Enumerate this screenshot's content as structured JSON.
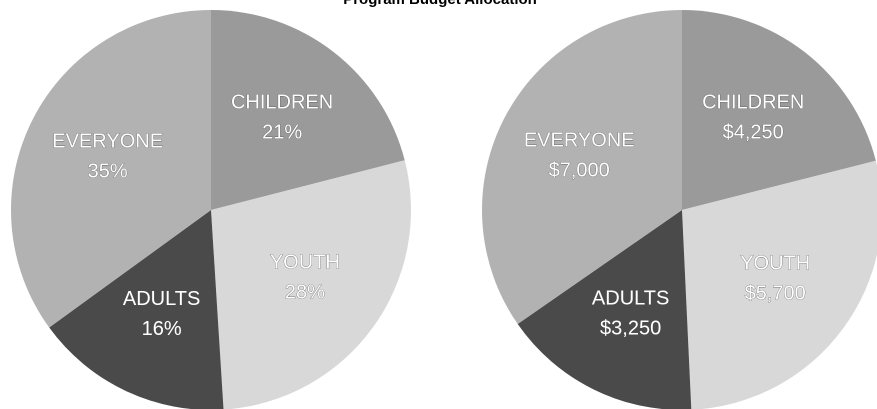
{
  "title": "Program Budget Allocation",
  "chart_data": [
    {
      "type": "pie",
      "categories": [
        "CHILDREN",
        "YOUTH",
        "ADULTS",
        "EVERYONE"
      ],
      "values": [
        21,
        28,
        16,
        35
      ],
      "value_labels": [
        "21%",
        "28%",
        "16%",
        "35%"
      ],
      "colors": [
        "#9a9a9a",
        "#d8d8d8",
        "#4a4a4a",
        "#b2b2b2"
      ]
    },
    {
      "type": "pie",
      "categories": [
        "CHILDREN",
        "YOUTH",
        "ADULTS",
        "EVERYONE"
      ],
      "values": [
        4250,
        5700,
        3250,
        7000
      ],
      "value_labels": [
        "$4,250",
        "$5,700",
        "$3,250",
        "$7,000"
      ],
      "colors": [
        "#9a9a9a",
        "#d8d8d8",
        "#4a4a4a",
        "#b2b2b2"
      ]
    }
  ]
}
